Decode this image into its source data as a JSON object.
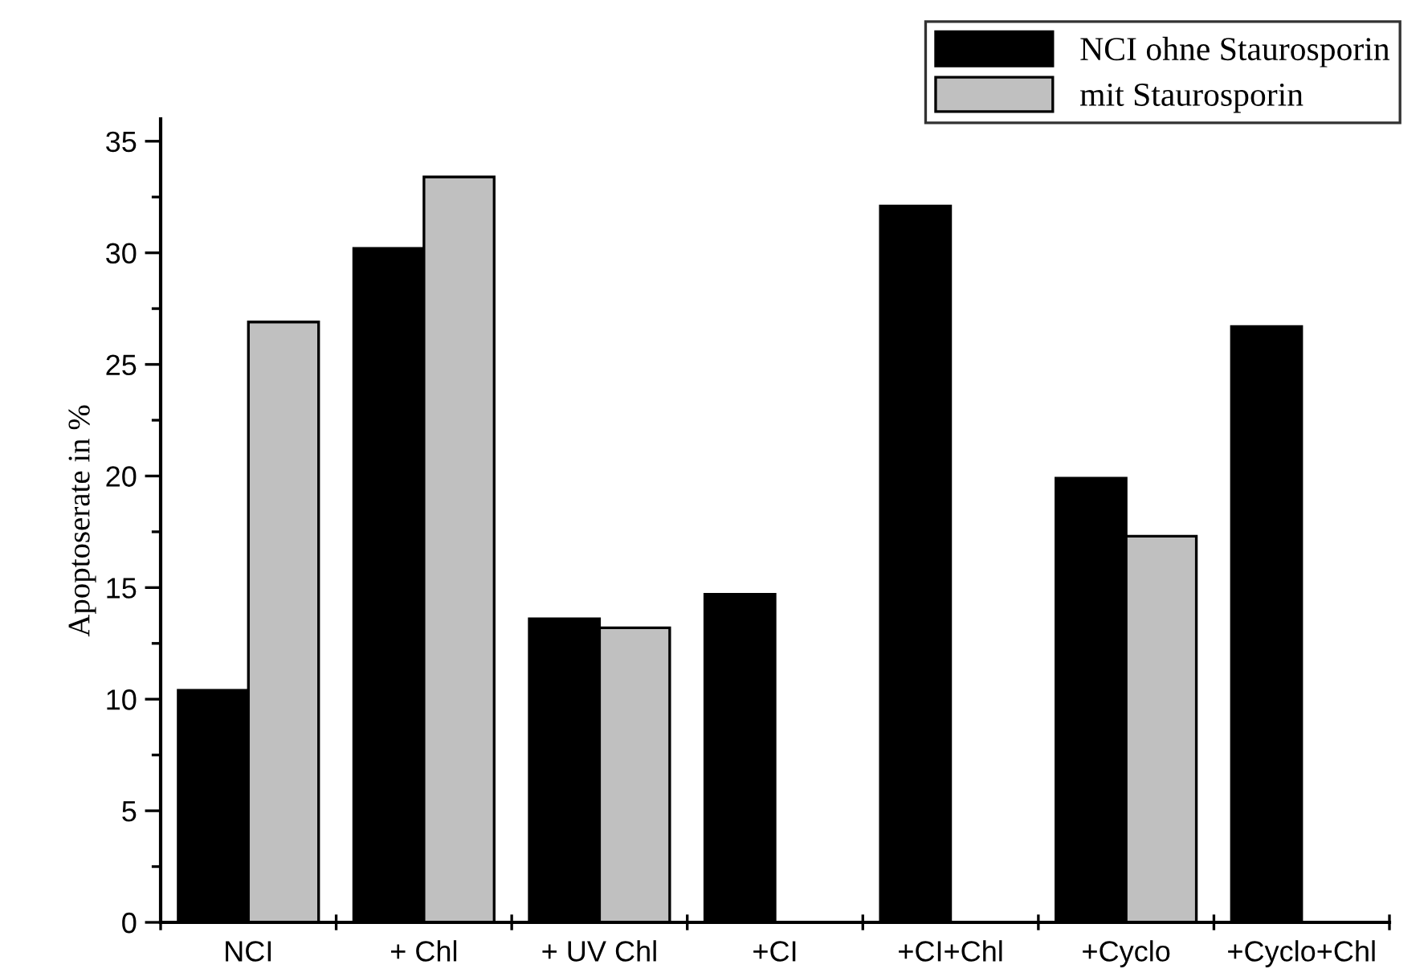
{
  "chart_data": {
    "type": "bar",
    "ylabel": "Apoptoserate in %",
    "categories": [
      "NCI",
      "+ Chl",
      "+ UV Chl",
      "+CI",
      "+CI+Chl",
      "+Cyclo",
      "+Cyclo+Chl"
    ],
    "series": [
      {
        "name": "NCI ohne Staurosporin",
        "color": "#000000",
        "values": [
          10.4,
          30.2,
          13.6,
          14.7,
          32.1,
          19.9,
          26.7
        ]
      },
      {
        "name": "mit Staurosporin",
        "color": "#c0c0c0",
        "values": [
          26.9,
          33.4,
          13.2,
          null,
          null,
          17.3,
          null
        ]
      }
    ],
    "ylim": [
      0,
      36
    ],
    "yticks": [
      0,
      5,
      10,
      15,
      20,
      25,
      30,
      35
    ],
    "grid": false,
    "legend": "top right"
  }
}
